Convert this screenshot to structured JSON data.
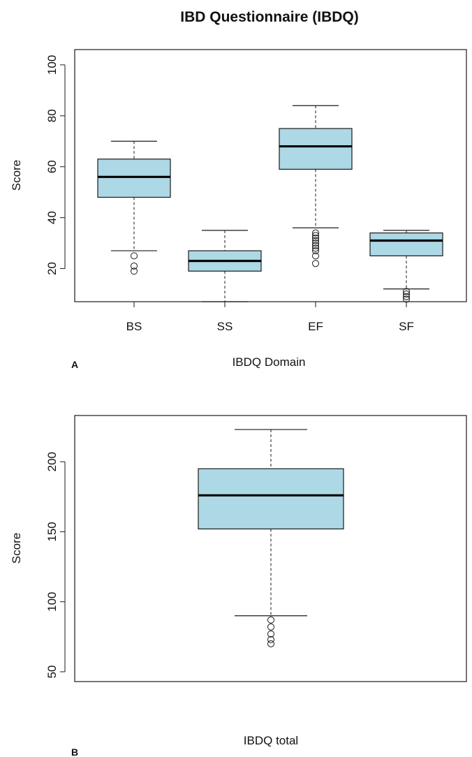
{
  "colors": {
    "box_fill": "#add8e6",
    "stroke": "#1a1a1a",
    "background": "#ffffff"
  },
  "chart_data": [
    {
      "type": "box",
      "panel_label": "A",
      "title": "IBD Questionnaire (IBDQ)",
      "xlabel": "IBDQ Domain",
      "ylabel": "Score",
      "ylim": [
        7,
        106
      ],
      "yticks": [
        20,
        40,
        60,
        80,
        100
      ],
      "grid": false,
      "legend": "none",
      "categories": [
        "BS",
        "SS",
        "EF",
        "SF"
      ],
      "boxes": [
        {
          "min": 27,
          "q1": 48,
          "median": 56,
          "q3": 63,
          "max": 70,
          "outliers": [
            19,
            21,
            25
          ]
        },
        {
          "min": 7,
          "q1": 19,
          "median": 23,
          "q3": 27,
          "max": 35,
          "outliers": []
        },
        {
          "min": 36,
          "q1": 59,
          "median": 68,
          "q3": 75,
          "max": 84,
          "outliers": [
            22,
            25,
            27,
            28,
            29,
            30,
            31,
            32,
            33,
            34
          ]
        },
        {
          "min": 12,
          "q1": 25,
          "median": 31,
          "q3": 34,
          "max": 35,
          "outliers": [
            8,
            9,
            10,
            11
          ]
        }
      ]
    },
    {
      "type": "box",
      "panel_label": "B",
      "title": "",
      "xlabel": "IBDQ total",
      "ylabel": "Score",
      "ylim": [
        43,
        233
      ],
      "yticks": [
        50,
        100,
        150,
        200
      ],
      "grid": false,
      "legend": "none",
      "categories": [
        ""
      ],
      "boxes": [
        {
          "min": 90,
          "q1": 152,
          "median": 176,
          "q3": 195,
          "max": 223,
          "outliers": [
            70,
            73,
            77,
            82,
            87
          ]
        }
      ]
    }
  ]
}
